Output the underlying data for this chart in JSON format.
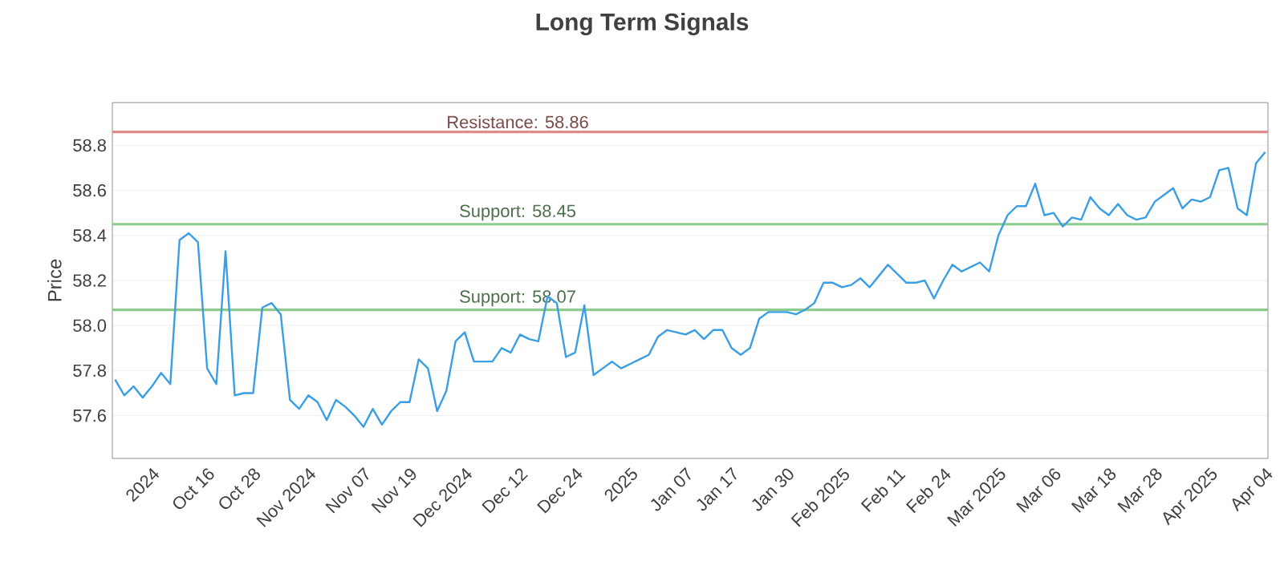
{
  "chart_data": {
    "type": "line",
    "title": "Long Term Signals",
    "ylabel": "Price",
    "categories": [
      null,
      null,
      null,
      null,
      "2024",
      null,
      null,
      null,
      null,
      null,
      "Oct 16",
      null,
      null,
      null,
      null,
      "Oct 28",
      null,
      null,
      null,
      null,
      null,
      "Nov 2024",
      null,
      null,
      null,
      null,
      null,
      "Nov 07",
      null,
      null,
      null,
      null,
      "Nov 19",
      null,
      null,
      null,
      null,
      null,
      "Dec 2024",
      null,
      null,
      null,
      null,
      null,
      "Dec 12",
      null,
      null,
      null,
      null,
      null,
      "Dec 24",
      null,
      null,
      null,
      null,
      null,
      "2025",
      null,
      null,
      null,
      null,
      null,
      "Jan 07",
      null,
      null,
      null,
      null,
      "Jan 17",
      null,
      null,
      null,
      null,
      null,
      "Jan 30",
      null,
      null,
      null,
      null,
      null,
      "Feb 2025",
      null,
      null,
      null,
      null,
      null,
      "Feb 11",
      null,
      null,
      null,
      null,
      "Feb 24",
      null,
      null,
      null,
      null,
      null,
      "Mar 2025",
      null,
      null,
      null,
      null,
      null,
      "Mar 06",
      null,
      null,
      null,
      null,
      null,
      "Mar 18",
      null,
      null,
      null,
      null,
      "Mar 28",
      null,
      null,
      null,
      null,
      null,
      "Apr 2025",
      null,
      null,
      null,
      null,
      null,
      "Apr 04"
    ],
    "series": [
      {
        "color": "#3a9ee4",
        "values": [
          57.76,
          57.69,
          57.73,
          57.68,
          57.73,
          57.79,
          57.74,
          58.38,
          58.41,
          58.37,
          57.81,
          57.74,
          58.33,
          57.69,
          57.7,
          57.7,
          58.08,
          58.1,
          58.05,
          57.67,
          57.63,
          57.69,
          57.66,
          57.58,
          57.67,
          57.64,
          57.6,
          57.55,
          57.63,
          57.56,
          57.62,
          57.66,
          57.66,
          57.85,
          57.81,
          57.62,
          57.71,
          57.93,
          57.97,
          57.84,
          57.84,
          57.84,
          57.9,
          57.88,
          57.96,
          57.94,
          57.93,
          58.13,
          58.1,
          57.86,
          57.88,
          58.09,
          57.78,
          57.81,
          57.84,
          57.81,
          57.83,
          57.85,
          57.87,
          57.95,
          57.98,
          57.97,
          57.96,
          57.98,
          57.94,
          57.98,
          57.98,
          57.9,
          57.87,
          57.9,
          58.03,
          58.06,
          58.06,
          58.06,
          58.05,
          58.07,
          58.1,
          58.19,
          58.19,
          58.17,
          58.18,
          58.21,
          58.17,
          58.22,
          58.27,
          58.23,
          58.19,
          58.19,
          58.2,
          58.12,
          58.2,
          58.27,
          58.24,
          58.26,
          58.28,
          58.24,
          58.4,
          58.49,
          58.53,
          58.53,
          58.63,
          58.49,
          58.5,
          58.44,
          58.48,
          58.47,
          58.57,
          58.52,
          58.49,
          58.54,
          58.49,
          58.47,
          58.48,
          58.55,
          58.58,
          58.61,
          58.52,
          58.56,
          58.55,
          58.57,
          58.69,
          58.7,
          58.52,
          58.49,
          58.72,
          58.77
        ]
      }
    ],
    "ylim": [
      57.41,
      58.99
    ],
    "yticks": [
      57.6,
      57.8,
      {
        "value": 58,
        "label": "58.0"
      },
      58.2,
      58.4,
      58.6,
      58.8
    ],
    "grid": "y",
    "marker": "none",
    "line_style": "solid",
    "ref_lines": [
      {
        "axis": "y",
        "value": 58.86,
        "label": "Resistance: 58.86",
        "color": "#e08a8a"
      },
      {
        "axis": "y",
        "value": 58.45,
        "label": "Support: 58.45",
        "color": "#8ccb8c"
      },
      {
        "axis": "y",
        "value": 58.07,
        "label": "Support: 58.07",
        "color": "#8ccb8c"
      }
    ]
  }
}
